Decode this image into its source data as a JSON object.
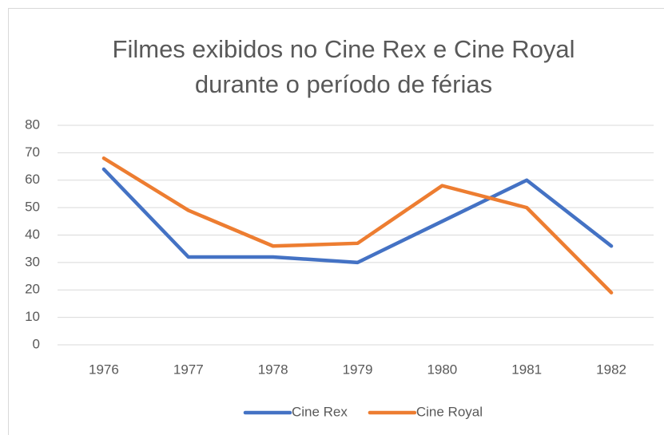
{
  "chart_data": {
    "type": "line",
    "title": "Filmes exibidos no Cine Rex e Cine Royal durante o período de férias",
    "categories": [
      "1976",
      "1977",
      "1978",
      "1979",
      "1980",
      "1981",
      "1982"
    ],
    "series": [
      {
        "name": "Cine Rex",
        "color": "#4472c4",
        "values": [
          64,
          32,
          32,
          30,
          45,
          60,
          36
        ]
      },
      {
        "name": "Cine Royal",
        "color": "#ed7d31",
        "values": [
          68,
          49,
          36,
          37,
          58,
          50,
          19
        ]
      }
    ],
    "ylim": [
      0,
      80
    ],
    "yticks": [
      0,
      10,
      20,
      30,
      40,
      50,
      60,
      70,
      80
    ],
    "grid": true,
    "legend": "bottom"
  }
}
